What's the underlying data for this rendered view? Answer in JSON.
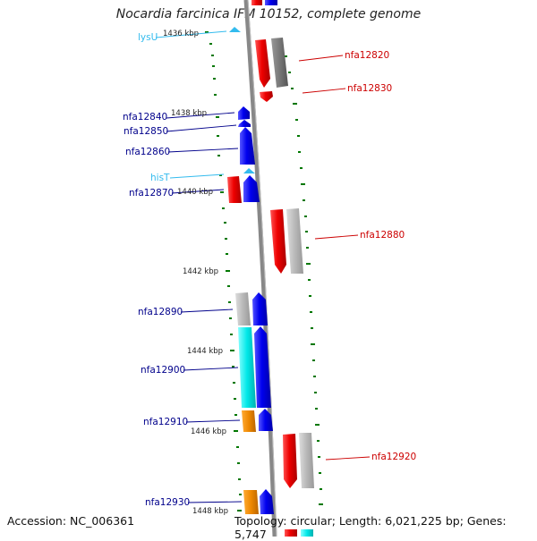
{
  "title": "Nocardia farcinica IFM 10152, complete genome",
  "accession": "Accession: NC_006361",
  "topology": "Topology: circular; Length: 6,021,225 bp; Genes: 5,747",
  "colors": {
    "forward": "#0000ee",
    "reverse": "#ee0000",
    "gray": "#aaaaaa",
    "cyan": "#00e8e8",
    "orange": "#ee8800",
    "trna": "#33bbee",
    "axis": "#888888",
    "tick": "#007700",
    "label_blue": "#00008b",
    "label_red": "#cc0000"
  },
  "kbp_ticks": [
    {
      "label": "1436 kbp"
    },
    {
      "label": "1438 kbp"
    },
    {
      "label": "1440 kbp"
    },
    {
      "label": "1442 kbp"
    },
    {
      "label": "1444 kbp"
    },
    {
      "label": "1446 kbp"
    },
    {
      "label": "1448 kbp"
    }
  ],
  "gene_labels": [
    {
      "name": "lysU",
      "type": "trna"
    },
    {
      "name": "nfa12820",
      "type": "reverse"
    },
    {
      "name": "nfa12830",
      "type": "reverse"
    },
    {
      "name": "nfa12840",
      "type": "forward"
    },
    {
      "name": "nfa12850",
      "type": "forward"
    },
    {
      "name": "nfa12860",
      "type": "forward"
    },
    {
      "name": "hisT",
      "type": "trna"
    },
    {
      "name": "nfa12870",
      "type": "forward"
    },
    {
      "name": "nfa12880",
      "type": "reverse"
    },
    {
      "name": "nfa12890",
      "type": "forward"
    },
    {
      "name": "nfa12900",
      "type": "forward"
    },
    {
      "name": "nfa12910",
      "type": "forward"
    },
    {
      "name": "nfa12920",
      "type": "reverse"
    },
    {
      "name": "nfa12930",
      "type": "forward"
    }
  ]
}
